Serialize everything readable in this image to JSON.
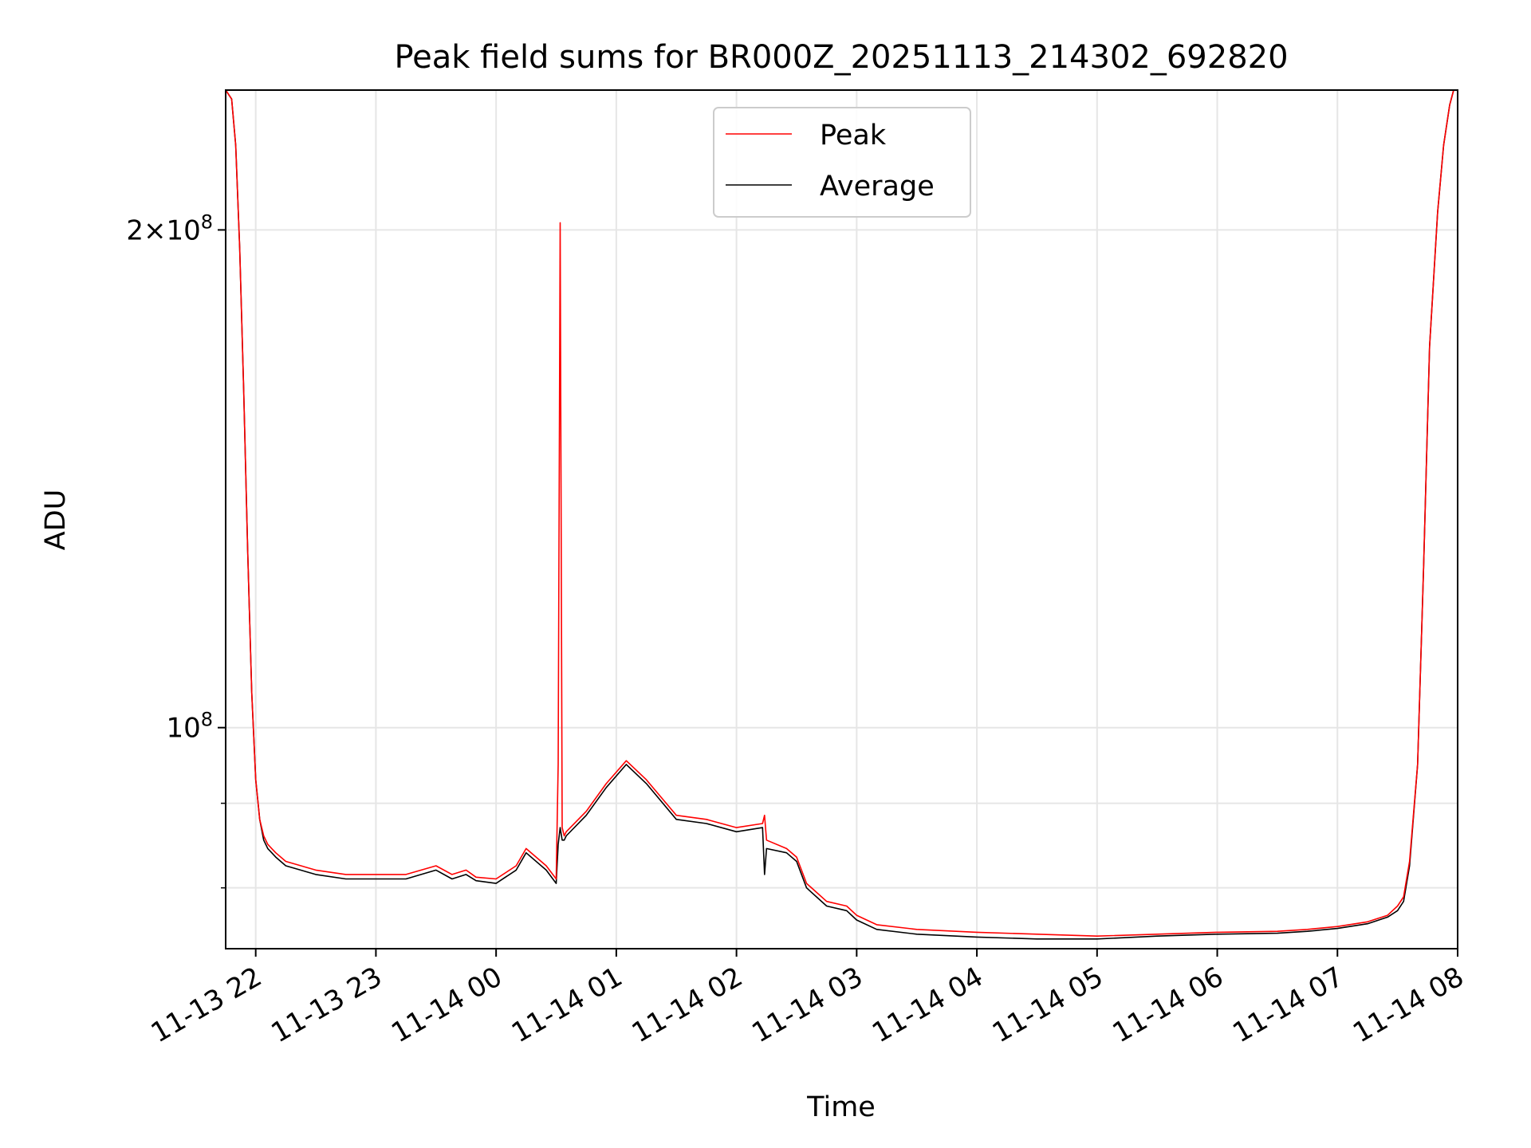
{
  "chart_data": {
    "type": "line",
    "title": "Peak field sums for BR000Z_20251113_214302_692820",
    "xlabel": "Time",
    "ylabel": "ADU",
    "y_scale": "log",
    "ylim": [
      73500000,
      243000000
    ],
    "xlim": [
      "2025-11-13 21:45",
      "2025-11-14 08:00"
    ],
    "grid": true,
    "legend_position": "upper center",
    "x_ticks": [
      "11-13 22",
      "11-13 23",
      "11-14 00",
      "11-14 01",
      "11-14 02",
      "11-14 03",
      "11-14 04",
      "11-14 05",
      "11-14 06",
      "11-14 07",
      "11-14 08"
    ],
    "y_major_ticks": [
      {
        "value": 100000000,
        "base": "10",
        "exp": "8",
        "coef": ""
      },
      {
        "value": 200000000,
        "base": "10",
        "exp": "8",
        "coef": "2×"
      }
    ],
    "y_minor_ticks": [
      80000000,
      90000000
    ],
    "series": [
      {
        "name": "Peak",
        "color": "#ff0000",
        "x": [
          "2025-11-13 21:45",
          "2025-11-13 21:48",
          "2025-11-13 21:50",
          "2025-11-13 21:52",
          "2025-11-13 21:54",
          "2025-11-13 21:56",
          "2025-11-13 21:58",
          "2025-11-13 22:00",
          "2025-11-13 22:02",
          "2025-11-13 22:04",
          "2025-11-13 22:06",
          "2025-11-13 22:08",
          "2025-11-13 22:10",
          "2025-11-13 22:15",
          "2025-11-13 22:30",
          "2025-11-13 22:45",
          "2025-11-13 23:00",
          "2025-11-13 23:15",
          "2025-11-13 23:30",
          "2025-11-13 23:38",
          "2025-11-13 23:45",
          "2025-11-13 23:50",
          "2025-11-14 00:00",
          "2025-11-14 00:10",
          "2025-11-14 00:15",
          "2025-11-14 00:25",
          "2025-11-14 00:30",
          "2025-11-14 00:31",
          "2025-11-14 00:32",
          "2025-11-14 00:33",
          "2025-11-14 00:34",
          "2025-11-14 00:35",
          "2025-11-14 00:45",
          "2025-11-14 00:55",
          "2025-11-14 01:05",
          "2025-11-14 01:15",
          "2025-11-14 01:30",
          "2025-11-14 01:45",
          "2025-11-14 02:00",
          "2025-11-14 02:13",
          "2025-11-14 02:14",
          "2025-11-14 02:15",
          "2025-11-14 02:25",
          "2025-11-14 02:30",
          "2025-11-14 02:35",
          "2025-11-14 02:45",
          "2025-11-14 02:55",
          "2025-11-14 03:00",
          "2025-11-14 03:10",
          "2025-11-14 03:30",
          "2025-11-14 04:00",
          "2025-11-14 04:30",
          "2025-11-14 05:00",
          "2025-11-14 05:30",
          "2025-11-14 06:00",
          "2025-11-14 06:30",
          "2025-11-14 06:45",
          "2025-11-14 07:00",
          "2025-11-14 07:15",
          "2025-11-14 07:25",
          "2025-11-14 07:30",
          "2025-11-14 07:33",
          "2025-11-14 07:36",
          "2025-11-14 07:40",
          "2025-11-14 07:43",
          "2025-11-14 07:46",
          "2025-11-14 07:50",
          "2025-11-14 07:53",
          "2025-11-14 07:56",
          "2025-11-14 07:58",
          "2025-11-14 08:00"
        ],
        "y": [
          243000000,
          240000000,
          225000000,
          195000000,
          160000000,
          128000000,
          105000000,
          93000000,
          88000000,
          86000000,
          85000000,
          84500000,
          84000000,
          83000000,
          82000000,
          81500000,
          81500000,
          81500000,
          82500000,
          81500000,
          82000000,
          81200000,
          81000000,
          82500000,
          84500000,
          82500000,
          81000000,
          95000000,
          202000000,
          87000000,
          86000000,
          86500000,
          89000000,
          92500000,
          95500000,
          93000000,
          88500000,
          88000000,
          87000000,
          87500000,
          88500000,
          85500000,
          84500000,
          83500000,
          80500000,
          78500000,
          78000000,
          77000000,
          76000000,
          75500000,
          75200000,
          75000000,
          74800000,
          75000000,
          75200000,
          75300000,
          75500000,
          75800000,
          76300000,
          77000000,
          78000000,
          79000000,
          83000000,
          95000000,
          125000000,
          170000000,
          205000000,
          225000000,
          238000000,
          243000000,
          243000000
        ]
      },
      {
        "name": "Average",
        "color": "#000000",
        "x": [
          "2025-11-13 21:45",
          "2025-11-13 21:48",
          "2025-11-13 21:50",
          "2025-11-13 21:52",
          "2025-11-13 21:54",
          "2025-11-13 21:56",
          "2025-11-13 21:58",
          "2025-11-13 22:00",
          "2025-11-13 22:02",
          "2025-11-13 22:04",
          "2025-11-13 22:06",
          "2025-11-13 22:08",
          "2025-11-13 22:10",
          "2025-11-13 22:15",
          "2025-11-13 22:30",
          "2025-11-13 22:45",
          "2025-11-13 23:00",
          "2025-11-13 23:15",
          "2025-11-13 23:30",
          "2025-11-13 23:38",
          "2025-11-13 23:45",
          "2025-11-13 23:50",
          "2025-11-14 00:00",
          "2025-11-14 00:10",
          "2025-11-14 00:15",
          "2025-11-14 00:25",
          "2025-11-14 00:30",
          "2025-11-14 00:31",
          "2025-11-14 00:32",
          "2025-11-14 00:33",
          "2025-11-14 00:34",
          "2025-11-14 00:35",
          "2025-11-14 00:45",
          "2025-11-14 00:55",
          "2025-11-14 01:05",
          "2025-11-14 01:15",
          "2025-11-14 01:30",
          "2025-11-14 01:45",
          "2025-11-14 02:00",
          "2025-11-14 02:13",
          "2025-11-14 02:14",
          "2025-11-14 02:15",
          "2025-11-14 02:25",
          "2025-11-14 02:30",
          "2025-11-14 02:35",
          "2025-11-14 02:45",
          "2025-11-14 02:55",
          "2025-11-14 03:00",
          "2025-11-14 03:10",
          "2025-11-14 03:30",
          "2025-11-14 04:00",
          "2025-11-14 04:30",
          "2025-11-14 05:00",
          "2025-11-14 05:30",
          "2025-11-14 06:00",
          "2025-11-14 06:30",
          "2025-11-14 06:45",
          "2025-11-14 07:00",
          "2025-11-14 07:15",
          "2025-11-14 07:25",
          "2025-11-14 07:30",
          "2025-11-14 07:33",
          "2025-11-14 07:36",
          "2025-11-14 07:40",
          "2025-11-14 07:43",
          "2025-11-14 07:46",
          "2025-11-14 07:50",
          "2025-11-14 07:53",
          "2025-11-14 07:56",
          "2025-11-14 07:58",
          "2025-11-14 08:00"
        ],
        "y": [
          243000000,
          240000000,
          225000000,
          195000000,
          160000000,
          128000000,
          105000000,
          93000000,
          88000000,
          85500000,
          84500000,
          84000000,
          83500000,
          82500000,
          81500000,
          81000000,
          81000000,
          81000000,
          82000000,
          81000000,
          81500000,
          80800000,
          80500000,
          82000000,
          84000000,
          82000000,
          80500000,
          85000000,
          87000000,
          85500000,
          85500000,
          86000000,
          88500000,
          92000000,
          95000000,
          92500000,
          88000000,
          87500000,
          86500000,
          87000000,
          81500000,
          84500000,
          84000000,
          83000000,
          80000000,
          78000000,
          77500000,
          76500000,
          75500000,
          75000000,
          74700000,
          74500000,
          74500000,
          74800000,
          75000000,
          75100000,
          75300000,
          75600000,
          76100000,
          76800000,
          77500000,
          78500000,
          82500000,
          95000000,
          125000000,
          170000000,
          205000000,
          225000000,
          238000000,
          243000000,
          243000000
        ]
      }
    ]
  }
}
